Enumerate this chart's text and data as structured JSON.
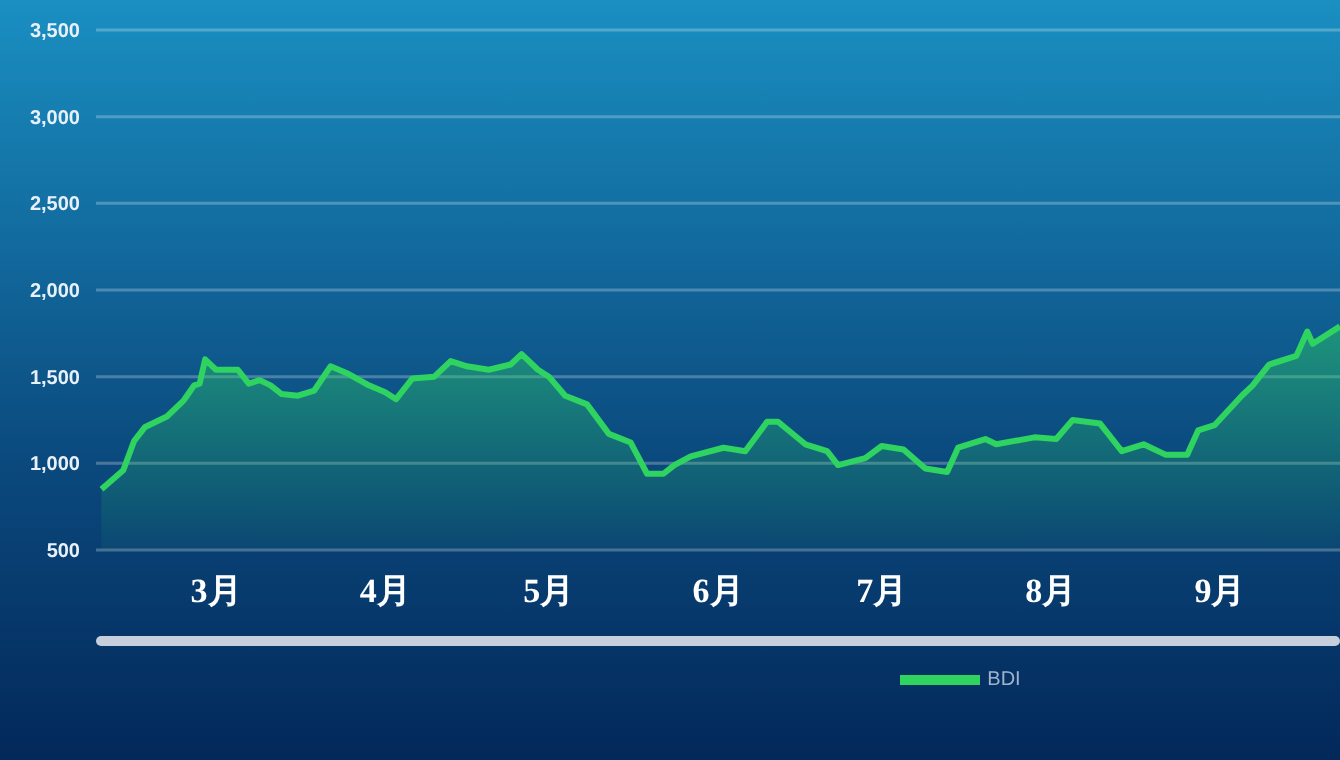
{
  "chart_data": {
    "type": "area",
    "x": [
      "--02-08",
      "--02-12",
      "--02-14",
      "--02-16",
      "--02-20",
      "--02-23",
      "--02-25",
      "--02-26",
      "--02-27",
      "--03-01",
      "--03-05",
      "--03-07",
      "--03-09",
      "--03-11",
      "--03-13",
      "--03-16",
      "--03-19",
      "--03-22",
      "--03-25",
      "--03-29",
      "--04-01",
      "--04-03",
      "--04-06",
      "--04-10",
      "--04-13",
      "--04-16",
      "--04-20",
      "--04-24",
      "--04-26",
      "--04-29",
      "--05-01",
      "--05-04",
      "--05-08",
      "--05-12",
      "--05-16",
      "--05-19",
      "--05-22",
      "--05-24",
      "--05-27",
      "--06-02",
      "--06-06",
      "--06-10",
      "--06-12",
      "--06-17",
      "--06-21",
      "--06-23",
      "--06-28",
      "--07-01",
      "--07-05",
      "--07-09",
      "--07-13",
      "--07-15",
      "--07-20",
      "--07-22",
      "--07-29",
      "--08-02",
      "--08-05",
      "--08-10",
      "--08-14",
      "--08-18",
      "--08-22",
      "--08-26",
      "--08-28",
      "--08-31",
      "--09-05",
      "--09-07",
      "--09-10",
      "--09-15",
      "--09-17",
      "--09-18",
      "--09-23"
    ],
    "series": [
      {
        "name": "BDI",
        "color": "#2fd35f",
        "values": [
          850,
          960,
          1130,
          1210,
          1270,
          1360,
          1450,
          1460,
          1600,
          1540,
          1540,
          1460,
          1480,
          1450,
          1400,
          1390,
          1420,
          1560,
          1520,
          1450,
          1410,
          1370,
          1490,
          1500,
          1590,
          1560,
          1540,
          1570,
          1630,
          1540,
          1500,
          1390,
          1340,
          1170,
          1120,
          940,
          940,
          990,
          1040,
          1090,
          1070,
          1240,
          1240,
          1110,
          1070,
          990,
          1030,
          1100,
          1080,
          970,
          950,
          1090,
          1140,
          1110,
          1150,
          1140,
          1250,
          1230,
          1070,
          1110,
          1050,
          1050,
          1190,
          1220,
          1390,
          1450,
          1570,
          1620,
          1760,
          1690,
          1790
        ]
      }
    ],
    "xlim": [
      "--02-07",
      "--09-23"
    ],
    "xticks": [
      {
        "value": "--03-01",
        "label": "3月"
      },
      {
        "value": "--04-01",
        "label": "4月"
      },
      {
        "value": "--05-01",
        "label": "5月"
      },
      {
        "value": "--06-01",
        "label": "6月"
      },
      {
        "value": "--07-01",
        "label": "7月"
      },
      {
        "value": "--08-01",
        "label": "8月"
      },
      {
        "value": "--09-01",
        "label": "9月"
      }
    ],
    "ylim": [
      500,
      3500
    ],
    "yticks": [
      {
        "value": 500,
        "label": "500"
      },
      {
        "value": 1000,
        "label": "1,000"
      },
      {
        "value": 1500,
        "label": "1,500"
      },
      {
        "value": 2000,
        "label": "2,000"
      },
      {
        "value": 2500,
        "label": "2,500"
      },
      {
        "value": 3000,
        "label": "3,000"
      },
      {
        "value": 3500,
        "label": "3,500"
      }
    ],
    "grid": "y",
    "legend": "bottom",
    "marker": "none",
    "line_style": "solid"
  }
}
